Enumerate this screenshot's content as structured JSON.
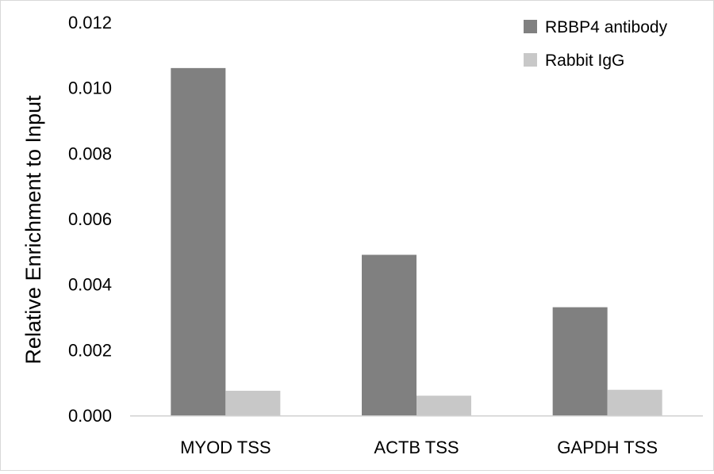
{
  "chart_data": {
    "type": "bar",
    "title": "",
    "xlabel": "",
    "ylabel": "Relative Enrichment to Input",
    "categories": [
      "MYOD TSS",
      "ACTB TSS",
      "GAPDH TSS"
    ],
    "series": [
      {
        "name": "RBBP4 antibody",
        "color": "#808080",
        "values": [
          0.0106,
          0.0049,
          0.0033
        ]
      },
      {
        "name": "Rabbit IgG",
        "color": "#c8c8c8",
        "values": [
          0.00075,
          0.0006,
          0.00078
        ]
      }
    ],
    "ylim": [
      0,
      0.012
    ],
    "yticks": [
      0.0,
      0.002,
      0.004,
      0.006,
      0.008,
      0.01,
      0.012
    ],
    "ytick_labels": [
      "0.000",
      "0.002",
      "0.004",
      "0.006",
      "0.008",
      "0.010",
      "0.012"
    ],
    "grid": false,
    "legend": "top-right"
  }
}
